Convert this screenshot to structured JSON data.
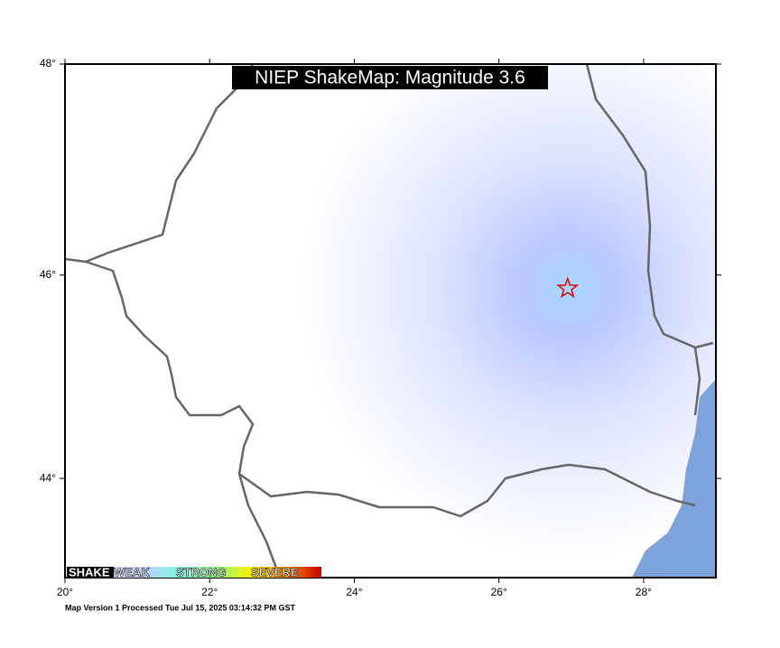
{
  "map": {
    "title": "NIEP ShakeMap: Magnitude 3.6",
    "footer": "Map Version 1 Processed Tue Jul 15, 2025 03:14:32 PM GST",
    "xlim": [
      20,
      29
    ],
    "ylim": [
      43,
      48
    ],
    "xticks": [
      {
        "value": 20,
        "label": "20°"
      },
      {
        "value": 22,
        "label": "22°"
      },
      {
        "value": 24,
        "label": "24°"
      },
      {
        "value": 26,
        "label": "26°"
      },
      {
        "value": 28,
        "label": "28°"
      }
    ],
    "yticks": [
      {
        "value": 44,
        "label": "44°"
      },
      {
        "value": 46,
        "label": "46°"
      },
      {
        "value": 48,
        "label": "48°"
      }
    ],
    "legend": [
      "SHAKE",
      "WEAK",
      "STRONG",
      "SEVERE"
    ],
    "epicenter": {
      "lon": 26.95,
      "lat": 45.87
    }
  }
}
